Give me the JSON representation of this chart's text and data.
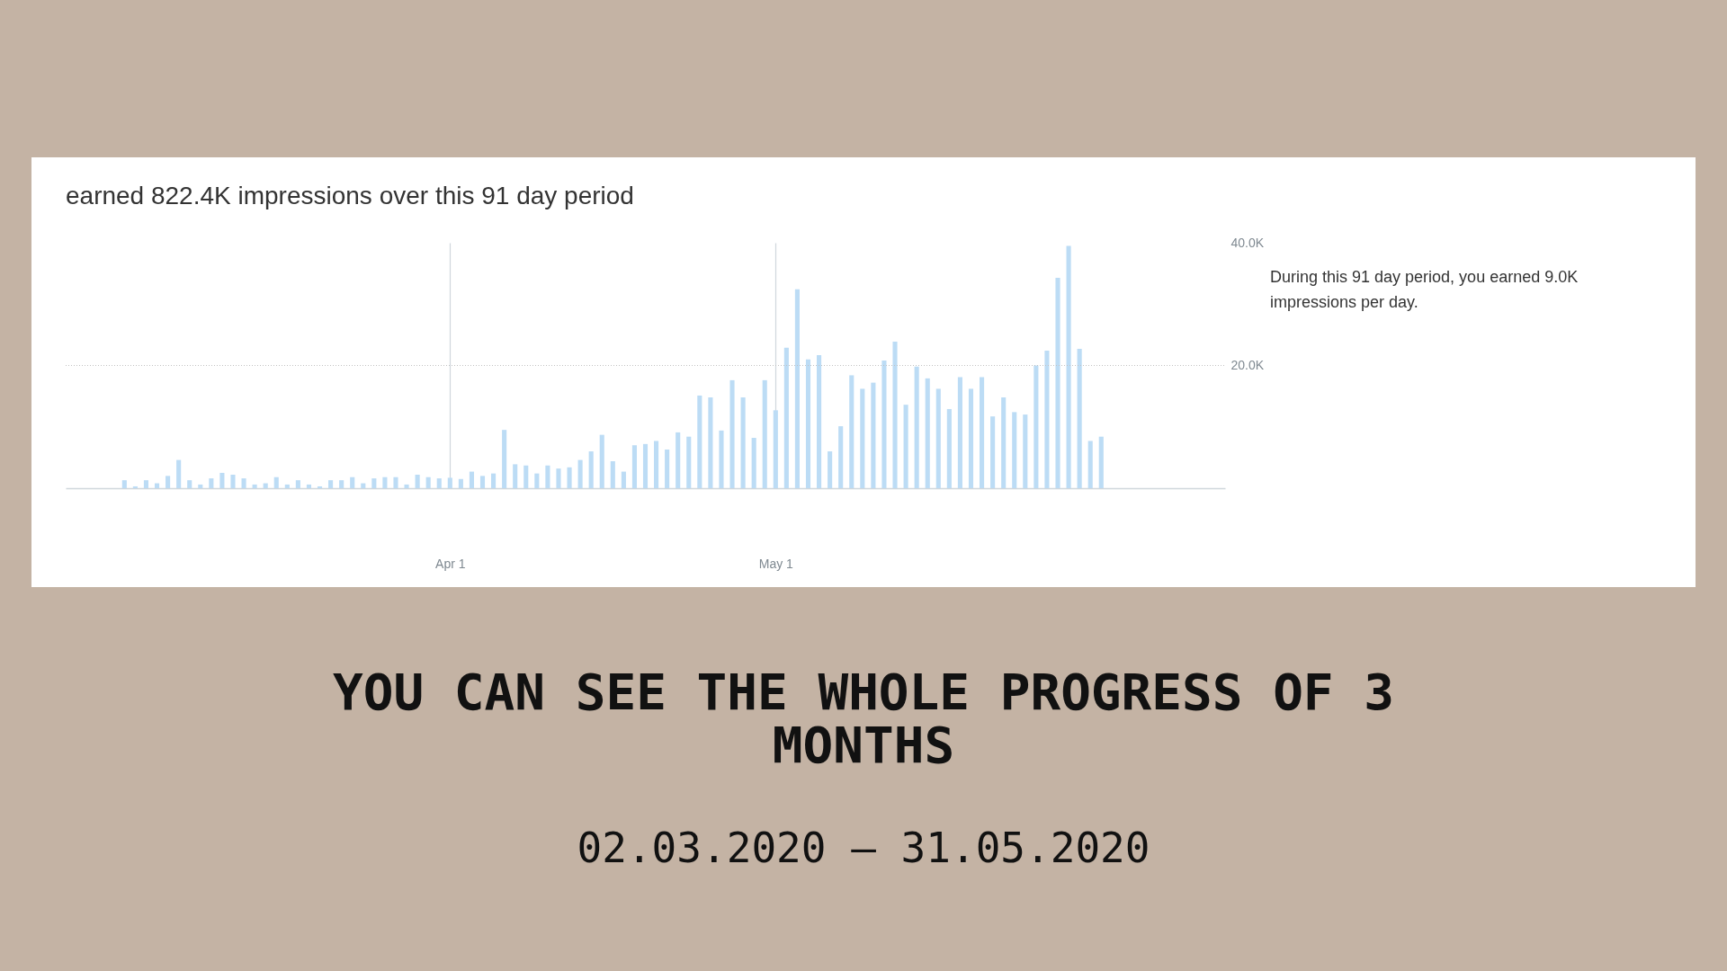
{
  "chart_data": [
    {
      "type": "bar",
      "title": "earned 822.4K impressions over this 91 day period",
      "x": [
        "2020-03-02",
        "2020-03-03",
        "2020-03-04",
        "2020-03-05",
        "2020-03-06",
        "2020-03-07",
        "2020-03-08",
        "2020-03-09",
        "2020-03-10",
        "2020-03-11",
        "2020-03-12",
        "2020-03-13",
        "2020-03-14",
        "2020-03-15",
        "2020-03-16",
        "2020-03-17",
        "2020-03-18",
        "2020-03-19",
        "2020-03-20",
        "2020-03-21",
        "2020-03-22",
        "2020-03-23",
        "2020-03-24",
        "2020-03-25",
        "2020-03-26",
        "2020-03-27",
        "2020-03-28",
        "2020-03-29",
        "2020-03-30",
        "2020-03-31",
        "2020-04-01",
        "2020-04-02",
        "2020-04-03",
        "2020-04-04",
        "2020-04-05",
        "2020-04-06",
        "2020-04-07",
        "2020-04-08",
        "2020-04-09",
        "2020-04-10",
        "2020-04-11",
        "2020-04-12",
        "2020-04-13",
        "2020-04-14",
        "2020-04-15",
        "2020-04-16",
        "2020-04-17",
        "2020-04-18",
        "2020-04-19",
        "2020-04-20",
        "2020-04-21",
        "2020-04-22",
        "2020-04-23",
        "2020-04-24",
        "2020-04-25",
        "2020-04-26",
        "2020-04-27",
        "2020-04-28",
        "2020-04-29",
        "2020-04-30",
        "2020-05-01",
        "2020-05-02",
        "2020-05-03",
        "2020-05-04",
        "2020-05-05",
        "2020-05-06",
        "2020-05-07",
        "2020-05-08",
        "2020-05-09",
        "2020-05-10",
        "2020-05-11",
        "2020-05-12",
        "2020-05-13",
        "2020-05-14",
        "2020-05-15",
        "2020-05-16",
        "2020-05-17",
        "2020-05-18",
        "2020-05-19",
        "2020-05-20",
        "2020-05-21",
        "2020-05-22",
        "2020-05-23",
        "2020-05-24",
        "2020-05-25",
        "2020-05-26",
        "2020-05-27",
        "2020-05-28",
        "2020-05-29",
        "2020-05-30",
        "2020-05-31"
      ],
      "values": [
        1300,
        300,
        1300,
        800,
        2000,
        4600,
        1300,
        600,
        1600,
        2500,
        2200,
        1600,
        600,
        800,
        1800,
        600,
        1300,
        600,
        300,
        1300,
        1300,
        1800,
        800,
        1600,
        1800,
        1800,
        600,
        2200,
        1800,
        1600,
        1700,
        1500,
        2700,
        2000,
        2400,
        9500,
        3900,
        3700,
        2400,
        3700,
        3200,
        3400,
        4600,
        6000,
        8700,
        4400,
        2700,
        7000,
        7200,
        7700,
        6300,
        9100,
        8400,
        15100,
        14800,
        9400,
        17600,
        14800,
        8200,
        17600,
        12700,
        22900,
        32400,
        21000,
        21700,
        6000,
        10100,
        18400,
        16200,
        17200,
        20800,
        23900,
        13600,
        19800,
        17900,
        16200,
        12900,
        18100,
        16200,
        18100,
        11700,
        14800,
        12400,
        12000,
        20000,
        22400,
        34300,
        39500,
        22700,
        7700,
        8400
      ],
      "color": "#bcdcf5",
      "xlim": [
        "2020-02-26",
        "2020-06-11"
      ],
      "xticks": [
        {
          "value": "2020-04-01",
          "label": "Apr 1"
        },
        {
          "value": "2020-05-01",
          "label": "May 1"
        }
      ],
      "ylim": [
        0,
        40000
      ],
      "yticks": [
        {
          "value": 20000,
          "label": "20.0K"
        },
        {
          "value": 40000,
          "label": "40.0K"
        }
      ],
      "grid": "x",
      "ref_lines": [
        {
          "axis": "y",
          "value": 20000,
          "color": "#c2c2c2",
          "line_style": "dotted"
        }
      ],
      "annotations": [
        "During this 91 day period, you earned 9.0K impressions per day."
      ]
    },
    {
      "type": "other",
      "title": "YOU CAN SEE THE WHOLE PROGRESS OF 3 MONTHS",
      "subtitle": "02.03.2020 – 31.05.2020"
    }
  ]
}
